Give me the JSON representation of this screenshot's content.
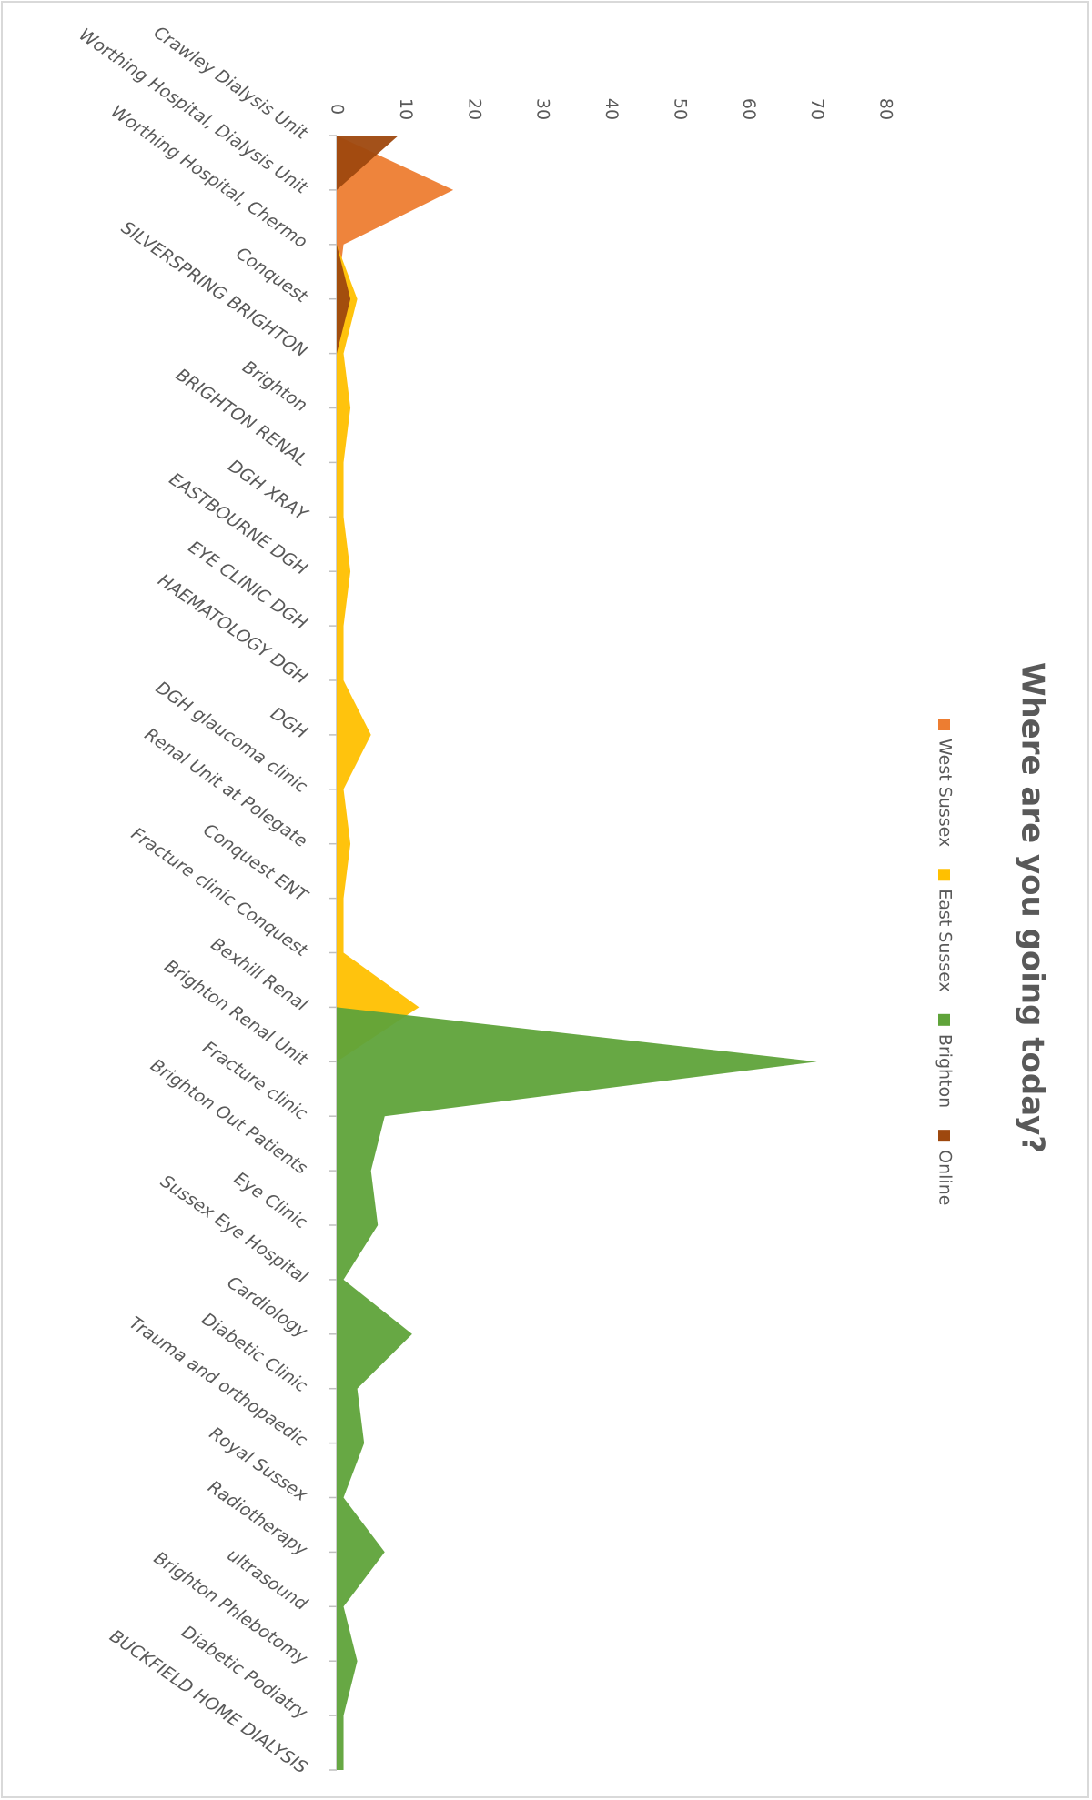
{
  "chart_data": {
    "type": "area",
    "title": "Where are you going today?",
    "categories": [
      "Crawley Dialysis Unit",
      "Worthing Hospital, Dialysis Unit",
      "Worthing Hospital, Chermo",
      "Conquest",
      "SILVERSPRING BRIGHTON",
      "Brighton",
      "BRIGHTON RENAL",
      "DGH XRAY",
      "EASTBOURNE DGH",
      "EYE CLINIC DGH",
      "HAEMATOLOGY DGH",
      "DGH",
      "DGH glaucoma clinic",
      "Renal Unit at Polegate",
      "Conquest ENT",
      "Fracture clinic Conquest",
      "Bexhill Renal",
      "Brighton Renal Unit",
      "Fracture clinic",
      "Brighton Out Patients",
      "Eye Clinic",
      "Sussex Eye Hospital",
      "Cardiology",
      "Diabetic Clinic",
      "Trauma and orthopaedic",
      "Royal Sussex",
      "Radiotherapy",
      "ultrasound",
      "Brighton Phlebotomy",
      "Diabetic Podiatry",
      "BUCKFIELD HOME DIALYSIS"
    ],
    "series": [
      {
        "name": "West Sussex",
        "color": "#ED7D31",
        "values": [
          0,
          17,
          1,
          0,
          0,
          0,
          0,
          0,
          0,
          0,
          0,
          0,
          0,
          0,
          0,
          0,
          0,
          0,
          0,
          0,
          0,
          0,
          0,
          0,
          0,
          0,
          0,
          0,
          0,
          0,
          0
        ]
      },
      {
        "name": "East Sussex",
        "color": "#FFC000",
        "values": [
          0,
          0,
          0,
          3,
          1,
          2,
          1,
          1,
          2,
          1,
          1,
          5,
          1,
          2,
          1,
          1,
          12,
          0,
          0,
          0,
          0,
          0,
          0,
          0,
          0,
          0,
          0,
          0,
          0,
          0,
          0
        ]
      },
      {
        "name": "Brighton",
        "color": "#5FA33A",
        "values": [
          0,
          0,
          0,
          0,
          0,
          0,
          0,
          0,
          0,
          0,
          0,
          0,
          0,
          0,
          0,
          0,
          0,
          70,
          7,
          5,
          6,
          1,
          11,
          3,
          4,
          1,
          7,
          1,
          3,
          1,
          1
        ]
      },
      {
        "name": "Online",
        "color": "#9E480E",
        "values": [
          9,
          0,
          0,
          2,
          0,
          0,
          0,
          0,
          0,
          0,
          0,
          0,
          0,
          0,
          0,
          0,
          0,
          0,
          0,
          0,
          0,
          0,
          0,
          0,
          0,
          0,
          0,
          0,
          0,
          0,
          0
        ]
      }
    ],
    "ylim": [
      0,
      80
    ],
    "yticks": [
      0,
      10,
      20,
      30,
      40,
      50,
      60,
      70,
      80
    ],
    "grid": false
  }
}
